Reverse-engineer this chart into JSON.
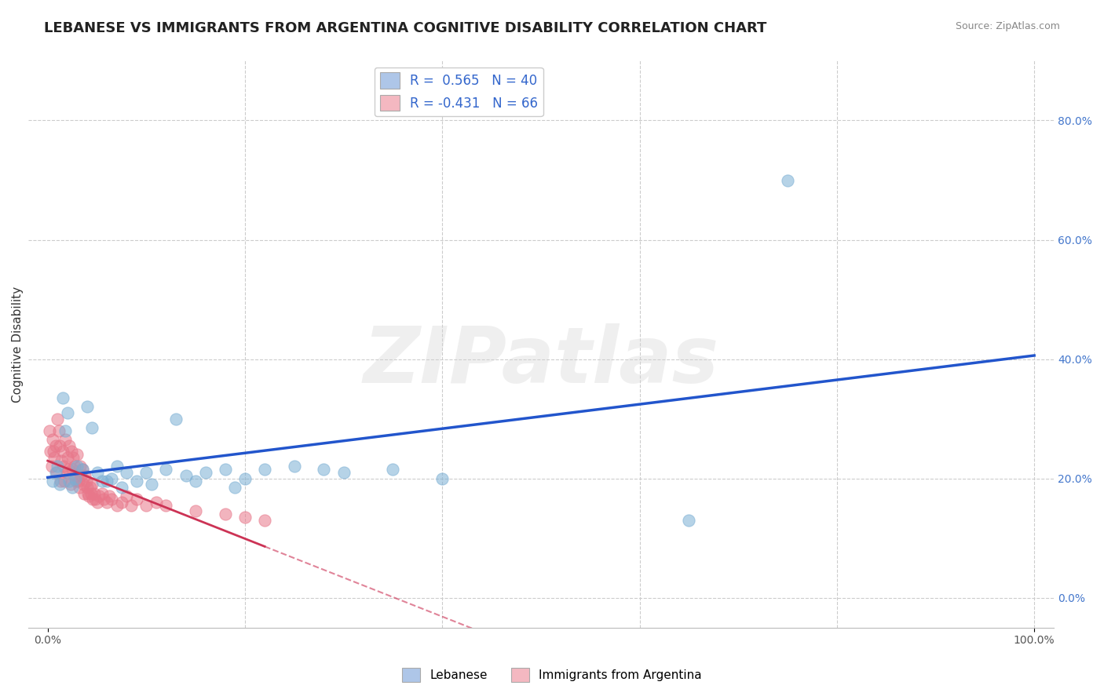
{
  "title": "LEBANESE VS IMMIGRANTS FROM ARGENTINA COGNITIVE DISABILITY CORRELATION CHART",
  "source": "Source: ZipAtlas.com",
  "xlabel": "",
  "ylabel": "Cognitive Disability",
  "xlim": [
    0,
    1.0
  ],
  "ylim": [
    -0.05,
    0.9
  ],
  "grid_color": "#cccccc",
  "background_color": "#ffffff",
  "watermark_text": "ZIPatlas",
  "legend_r1": "R =  0.565   N = 40",
  "legend_r2": "R = -0.431   N = 66",
  "legend_color1": "#aec6e8",
  "legend_color2": "#f4b8c1",
  "series1_color": "#7bafd4",
  "series2_color": "#e8778a",
  "line1_color": "#2255cc",
  "line2_color": "#cc3355",
  "series1_name": "Lebanese",
  "series2_name": "Immigrants from Argentina",
  "blue_dots": [
    [
      0.005,
      0.195
    ],
    [
      0.008,
      0.21
    ],
    [
      0.01,
      0.22
    ],
    [
      0.012,
      0.19
    ],
    [
      0.015,
      0.335
    ],
    [
      0.018,
      0.28
    ],
    [
      0.02,
      0.31
    ],
    [
      0.022,
      0.195
    ],
    [
      0.025,
      0.185
    ],
    [
      0.028,
      0.2
    ],
    [
      0.03,
      0.22
    ],
    [
      0.035,
      0.215
    ],
    [
      0.04,
      0.32
    ],
    [
      0.045,
      0.285
    ],
    [
      0.05,
      0.21
    ],
    [
      0.055,
      0.195
    ],
    [
      0.06,
      0.195
    ],
    [
      0.065,
      0.2
    ],
    [
      0.07,
      0.22
    ],
    [
      0.075,
      0.185
    ],
    [
      0.08,
      0.21
    ],
    [
      0.09,
      0.195
    ],
    [
      0.1,
      0.21
    ],
    [
      0.105,
      0.19
    ],
    [
      0.12,
      0.215
    ],
    [
      0.13,
      0.3
    ],
    [
      0.14,
      0.205
    ],
    [
      0.15,
      0.195
    ],
    [
      0.16,
      0.21
    ],
    [
      0.18,
      0.215
    ],
    [
      0.19,
      0.185
    ],
    [
      0.2,
      0.2
    ],
    [
      0.22,
      0.215
    ],
    [
      0.25,
      0.22
    ],
    [
      0.28,
      0.215
    ],
    [
      0.3,
      0.21
    ],
    [
      0.35,
      0.215
    ],
    [
      0.4,
      0.2
    ],
    [
      0.65,
      0.13
    ],
    [
      0.75,
      0.7
    ]
  ],
  "pink_dots": [
    [
      0.002,
      0.28
    ],
    [
      0.003,
      0.245
    ],
    [
      0.004,
      0.22
    ],
    [
      0.005,
      0.265
    ],
    [
      0.006,
      0.245
    ],
    [
      0.007,
      0.235
    ],
    [
      0.008,
      0.255
    ],
    [
      0.009,
      0.21
    ],
    [
      0.01,
      0.3
    ],
    [
      0.011,
      0.28
    ],
    [
      0.012,
      0.255
    ],
    [
      0.013,
      0.195
    ],
    [
      0.014,
      0.23
    ],
    [
      0.015,
      0.245
    ],
    [
      0.016,
      0.22
    ],
    [
      0.017,
      0.195
    ],
    [
      0.018,
      0.265
    ],
    [
      0.019,
      0.21
    ],
    [
      0.02,
      0.235
    ],
    [
      0.021,
      0.215
    ],
    [
      0.022,
      0.255
    ],
    [
      0.023,
      0.19
    ],
    [
      0.024,
      0.245
    ],
    [
      0.025,
      0.215
    ],
    [
      0.026,
      0.235
    ],
    [
      0.027,
      0.22
    ],
    [
      0.028,
      0.205
    ],
    [
      0.029,
      0.195
    ],
    [
      0.03,
      0.24
    ],
    [
      0.031,
      0.195
    ],
    [
      0.032,
      0.185
    ],
    [
      0.033,
      0.22
    ],
    [
      0.034,
      0.205
    ],
    [
      0.035,
      0.215
    ],
    [
      0.036,
      0.19
    ],
    [
      0.037,
      0.175
    ],
    [
      0.038,
      0.205
    ],
    [
      0.039,
      0.195
    ],
    [
      0.04,
      0.185
    ],
    [
      0.041,
      0.175
    ],
    [
      0.042,
      0.17
    ],
    [
      0.043,
      0.185
    ],
    [
      0.044,
      0.175
    ],
    [
      0.045,
      0.19
    ],
    [
      0.046,
      0.165
    ],
    [
      0.047,
      0.175
    ],
    [
      0.048,
      0.165
    ],
    [
      0.05,
      0.16
    ],
    [
      0.052,
      0.17
    ],
    [
      0.055,
      0.175
    ],
    [
      0.057,
      0.165
    ],
    [
      0.06,
      0.16
    ],
    [
      0.062,
      0.17
    ],
    [
      0.065,
      0.165
    ],
    [
      0.07,
      0.155
    ],
    [
      0.075,
      0.16
    ],
    [
      0.08,
      0.17
    ],
    [
      0.085,
      0.155
    ],
    [
      0.09,
      0.165
    ],
    [
      0.1,
      0.155
    ],
    [
      0.11,
      0.16
    ],
    [
      0.12,
      0.155
    ],
    [
      0.15,
      0.145
    ],
    [
      0.18,
      0.14
    ],
    [
      0.2,
      0.135
    ],
    [
      0.22,
      0.13
    ]
  ]
}
